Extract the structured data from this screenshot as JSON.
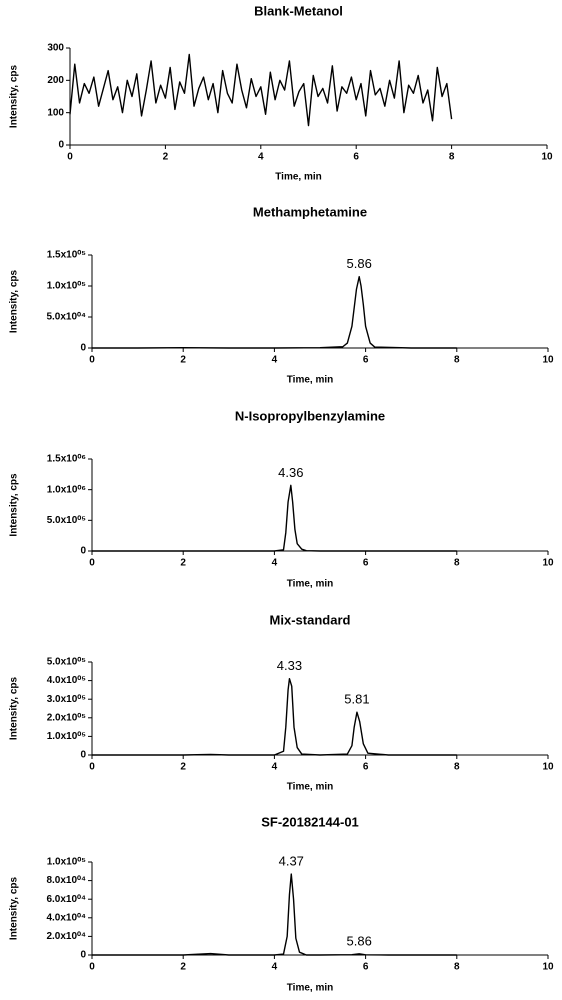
{
  "chart_data": [
    {
      "type": "line",
      "title": "Blank-Metanol",
      "xlabel": "Time, min",
      "ylabel": "Intensity, cps",
      "xlim": [
        0,
        10
      ],
      "xticks": [
        0,
        2,
        4,
        6,
        8,
        10
      ],
      "ylim": [
        0,
        300
      ],
      "yticks": [
        0,
        100,
        200,
        300
      ],
      "series": [
        {
          "color": "#000000",
          "x": [
            0,
            0.1,
            0.2,
            0.3,
            0.4,
            0.5,
            0.6,
            0.7,
            0.8,
            0.9,
            1,
            1.1,
            1.2,
            1.3,
            1.4,
            1.5,
            1.6,
            1.7,
            1.8,
            1.9,
            2,
            2.1,
            2.2,
            2.3,
            2.4,
            2.5,
            2.6,
            2.7,
            2.8,
            2.9,
            3,
            3.1,
            3.2,
            3.3,
            3.4,
            3.5,
            3.6,
            3.7,
            3.8,
            3.9,
            4,
            4.1,
            4.2,
            4.3,
            4.4,
            4.5,
            4.6,
            4.7,
            4.8,
            4.9,
            5,
            5.1,
            5.2,
            5.3,
            5.4,
            5.5,
            5.6,
            5.7,
            5.8,
            5.9,
            6,
            6.1,
            6.2,
            6.3,
            6.4,
            6.5,
            6.6,
            6.7,
            6.8,
            6.9,
            7,
            7.1,
            7.2,
            7.3,
            7.4,
            7.5,
            7.6,
            7.7,
            7.8,
            7.9,
            8
          ],
          "values": [
            95,
            250,
            130,
            190,
            160,
            210,
            120,
            175,
            230,
            140,
            180,
            100,
            200,
            150,
            220,
            90,
            170,
            260,
            130,
            185,
            145,
            240,
            110,
            195,
            160,
            280,
            120,
            175,
            210,
            140,
            190,
            100,
            230,
            160,
            130,
            250,
            170,
            115,
            205,
            150,
            180,
            95,
            225,
            140,
            200,
            170,
            260,
            120,
            165,
            190,
            60,
            215,
            150,
            175,
            130,
            245,
            105,
            180,
            160,
            210,
            140,
            190,
            90,
            230,
            155,
            175,
            120,
            200,
            145,
            260,
            100,
            185,
            160,
            215,
            130,
            170,
            75,
            240,
            150,
            190,
            80
          ]
        }
      ],
      "annotations": []
    },
    {
      "type": "line",
      "title": "Methamphetamine",
      "xlabel": "Time, min",
      "ylabel": "Intensity, cps",
      "xlim": [
        0,
        10
      ],
      "xticks": [
        0,
        2,
        4,
        6,
        8,
        10
      ],
      "ylim": [
        0,
        150000
      ],
      "yticks": [
        0,
        {
          "value": 50000,
          "label": "5.0x10⁰⁴"
        },
        {
          "value": 100000,
          "label": "1.0x10⁰⁵"
        },
        {
          "value": 150000,
          "label": "1.5x10⁰⁵"
        }
      ],
      "series": [
        {
          "color": "#000000",
          "x": [
            0,
            1,
            2,
            3,
            4,
            5,
            5.5,
            5.6,
            5.7,
            5.75,
            5.8,
            5.86,
            5.9,
            5.95,
            6.0,
            6.1,
            6.2,
            7,
            8
          ],
          "values": [
            0,
            0,
            500,
            0,
            0,
            500,
            2000,
            8000,
            35000,
            65000,
            95000,
            115000,
            100000,
            70000,
            35000,
            8000,
            1500,
            0,
            0
          ]
        }
      ],
      "annotations": [
        {
          "label": "5.86",
          "x": 5.86,
          "y": 115000
        }
      ]
    },
    {
      "type": "line",
      "title": "N-Isopropylbenzylamine",
      "xlabel": "Time, min",
      "ylabel": "Intensity, cps",
      "xlim": [
        0,
        10
      ],
      "xticks": [
        0,
        2,
        4,
        6,
        8,
        10
      ],
      "ylim": [
        0,
        1500000
      ],
      "yticks": [
        0,
        {
          "value": 500000,
          "label": "5.0x10⁰⁵"
        },
        {
          "value": 1000000,
          "label": "1.0x10⁰⁶"
        },
        {
          "value": 1500000,
          "label": "1.5x10⁰⁶"
        }
      ],
      "series": [
        {
          "color": "#000000",
          "x": [
            0,
            1,
            2,
            3,
            4,
            4.2,
            4.25,
            4.3,
            4.36,
            4.4,
            4.45,
            4.5,
            4.6,
            4.7,
            5,
            6,
            7,
            8
          ],
          "values": [
            0,
            0,
            0,
            0,
            0,
            20000,
            300000,
            800000,
            1070000,
            800000,
            350000,
            120000,
            30000,
            5000,
            0,
            0,
            0,
            0
          ]
        }
      ],
      "annotations": [
        {
          "label": "4.36",
          "x": 4.36,
          "y": 1070000
        }
      ]
    },
    {
      "type": "line",
      "title": "Mix-standard",
      "xlabel": "Time, min",
      "ylabel": "Intensity, cps",
      "xlim": [
        0,
        10
      ],
      "xticks": [
        0,
        2,
        4,
        6,
        8,
        10
      ],
      "ylim": [
        0,
        500000
      ],
      "yticks": [
        0,
        {
          "value": 100000,
          "label": "1.0x10⁰⁵"
        },
        {
          "value": 200000,
          "label": "2.0x10⁰⁵"
        },
        {
          "value": 300000,
          "label": "3.0x10⁰⁵"
        },
        {
          "value": 400000,
          "label": "4.0x10⁰⁵"
        },
        {
          "value": 500000,
          "label": "5.0x10⁰⁵"
        }
      ],
      "series": [
        {
          "color": "#000000",
          "x": [
            0,
            1,
            2,
            2.6,
            3,
            4,
            4.2,
            4.25,
            4.3,
            4.33,
            4.38,
            4.43,
            4.5,
            4.6,
            5,
            5.6,
            5.7,
            5.75,
            5.81,
            5.87,
            5.95,
            6.05,
            6.5,
            7,
            8
          ],
          "values": [
            0,
            0,
            0,
            3000,
            0,
            0,
            20000,
            150000,
            350000,
            410000,
            370000,
            150000,
            40000,
            5000,
            0,
            5000,
            50000,
            150000,
            230000,
            180000,
            60000,
            10000,
            0,
            0,
            0
          ]
        }
      ],
      "annotations": [
        {
          "label": "4.33",
          "x": 4.33,
          "y": 410000
        },
        {
          "label": "5.81",
          "x": 5.81,
          "y": 230000
        }
      ]
    },
    {
      "type": "line",
      "title": "SF-20182144-01",
      "xlabel": "Time, min",
      "ylabel": "Intensity, cps",
      "xlim": [
        0,
        10
      ],
      "xticks": [
        0,
        2,
        4,
        6,
        8,
        10
      ],
      "ylim": [
        0,
        100000
      ],
      "yticks": [
        0,
        {
          "value": 20000,
          "label": "2.0x10⁰⁴"
        },
        {
          "value": 40000,
          "label": "4.0x10⁰⁴"
        },
        {
          "value": 60000,
          "label": "6.0x10⁰⁴"
        },
        {
          "value": 80000,
          "label": "8.0x10⁰⁴"
        },
        {
          "value": 100000,
          "label": "1.0x10⁰⁵"
        }
      ],
      "series": [
        {
          "color": "#000000",
          "x": [
            0,
            1,
            2,
            2.6,
            3,
            4,
            4.2,
            4.28,
            4.33,
            4.37,
            4.42,
            4.47,
            4.55,
            4.7,
            5,
            5.7,
            5.86,
            6.0,
            6.5,
            7,
            8
          ],
          "values": [
            0,
            0,
            0,
            1500,
            0,
            0,
            1000,
            20000,
            65000,
            87000,
            60000,
            18000,
            3000,
            0,
            0,
            300,
            1200,
            200,
            0,
            0,
            0
          ]
        }
      ],
      "annotations": [
        {
          "label": "4.37",
          "x": 4.37,
          "y": 87000
        },
        {
          "label": "5.86",
          "x": 5.86,
          "y": 1200
        }
      ]
    }
  ]
}
